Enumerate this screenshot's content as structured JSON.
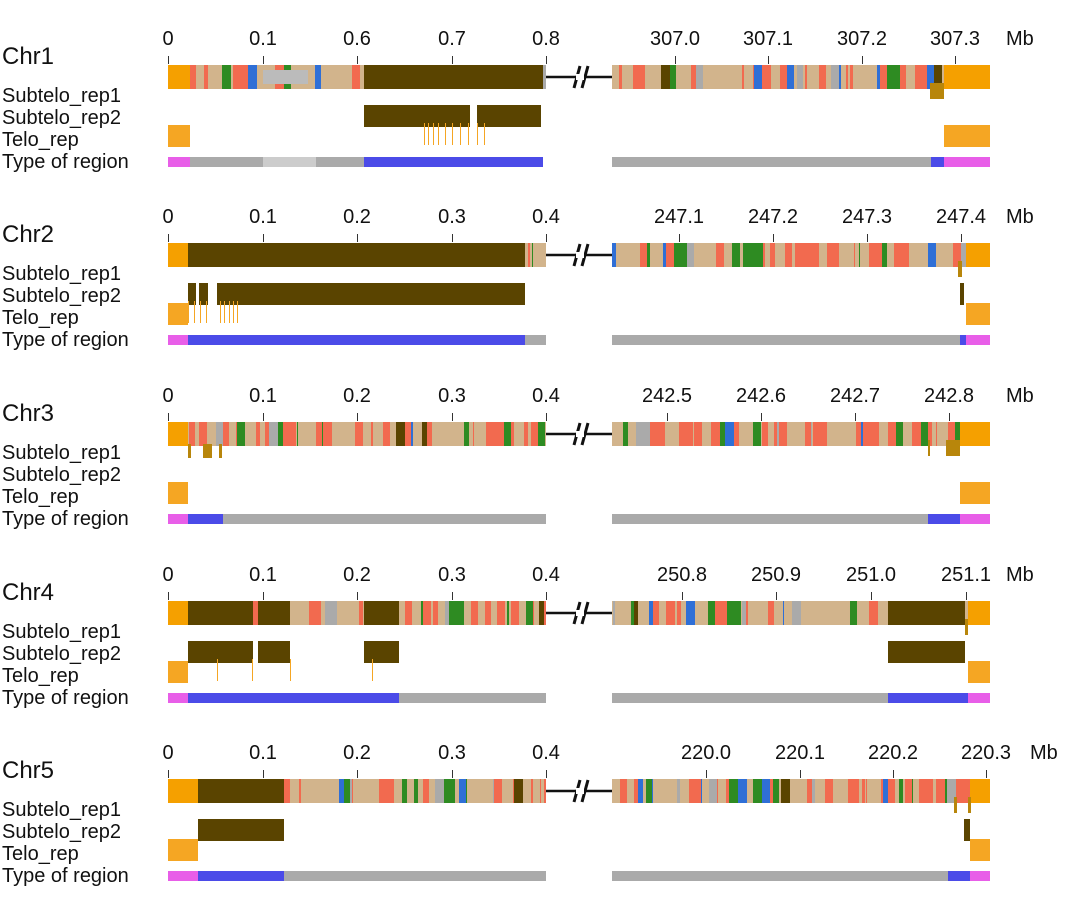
{
  "figure": {
    "unit": "Mb",
    "track_labels": [
      "Subtelo_rep1",
      "Subtelo_rep2",
      "Telo_rep",
      "Type of region"
    ],
    "colors": {
      "tan": "#d2b48c",
      "red": "#f26a4f",
      "green": "#2e8b22",
      "blue": "#2f6fd6",
      "orange": "#f5a000",
      "darkbrown": "#5a4400",
      "gold": "#b8860b",
      "gray": "#aaaaaa",
      "pink": "#e85ee8",
      "regionblue": "#4b4be8",
      "telo": "#f5a623"
    }
  },
  "chromosomes": [
    {
      "name": "Chr1",
      "left_ticks": [
        "0",
        "0.1",
        "0.6",
        "0.7",
        "0.8"
      ],
      "right_ticks": [
        "307.0",
        "307.1",
        "307.2",
        "307.3"
      ]
    },
    {
      "name": "Chr2",
      "left_ticks": [
        "0",
        "0.1",
        "0.2",
        "0.3",
        "0.4"
      ],
      "right_ticks": [
        "247.1",
        "247.2",
        "247.3",
        "247.4"
      ]
    },
    {
      "name": "Chr3",
      "left_ticks": [
        "0",
        "0.1",
        "0.2",
        "0.3",
        "0.4"
      ],
      "right_ticks": [
        "242.5",
        "242.6",
        "242.7",
        "242.8"
      ]
    },
    {
      "name": "Chr4",
      "left_ticks": [
        "0",
        "0.1",
        "0.2",
        "0.3",
        "0.4"
      ],
      "right_ticks": [
        "250.8",
        "250.9",
        "251.0",
        "251.1"
      ]
    },
    {
      "name": "Chr5",
      "left_ticks": [
        "0",
        "0.1",
        "0.2",
        "0.3",
        "0.4"
      ],
      "right_ticks": [
        "220.0",
        "220.1",
        "220.2",
        "220.3"
      ]
    }
  ]
}
